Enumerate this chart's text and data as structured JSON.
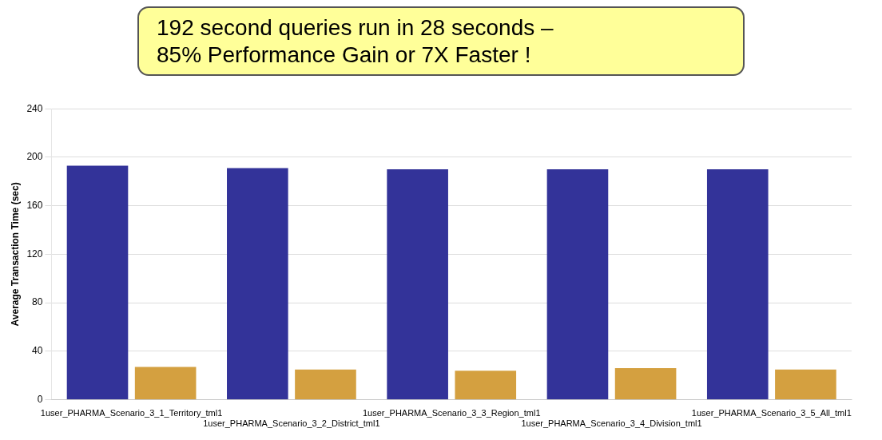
{
  "chart_data": {
    "type": "bar",
    "ylabel": "Average Transaction Time (sec)",
    "categories": [
      "1user_PHARMA_Scenario_3_1_Territory_tml1",
      "1user_PHARMA_Scenario_3_2_District_tml1",
      "1user_PHARMA_Scenario_3_3_Region_tml1",
      "1user_PHARMA_Scenario_3_4_Division_tml1",
      "1user_PHARMA_Scenario_3_5_All_tml1"
    ],
    "series": [
      {
        "color": "#333399",
        "values": [
          193,
          191,
          190,
          190,
          190
        ]
      },
      {
        "color": "#d4a040",
        "values": [
          27,
          25,
          24,
          26,
          25
        ]
      }
    ],
    "ylim": [
      0,
      240
    ],
    "yticks": [
      0,
      40,
      80,
      120,
      160,
      200,
      240
    ],
    "grid": "y",
    "legend": false,
    "annotations": [
      "192 second queries run in 28 seconds –",
      "85% Performance Gain or 7X Faster !"
    ]
  }
}
